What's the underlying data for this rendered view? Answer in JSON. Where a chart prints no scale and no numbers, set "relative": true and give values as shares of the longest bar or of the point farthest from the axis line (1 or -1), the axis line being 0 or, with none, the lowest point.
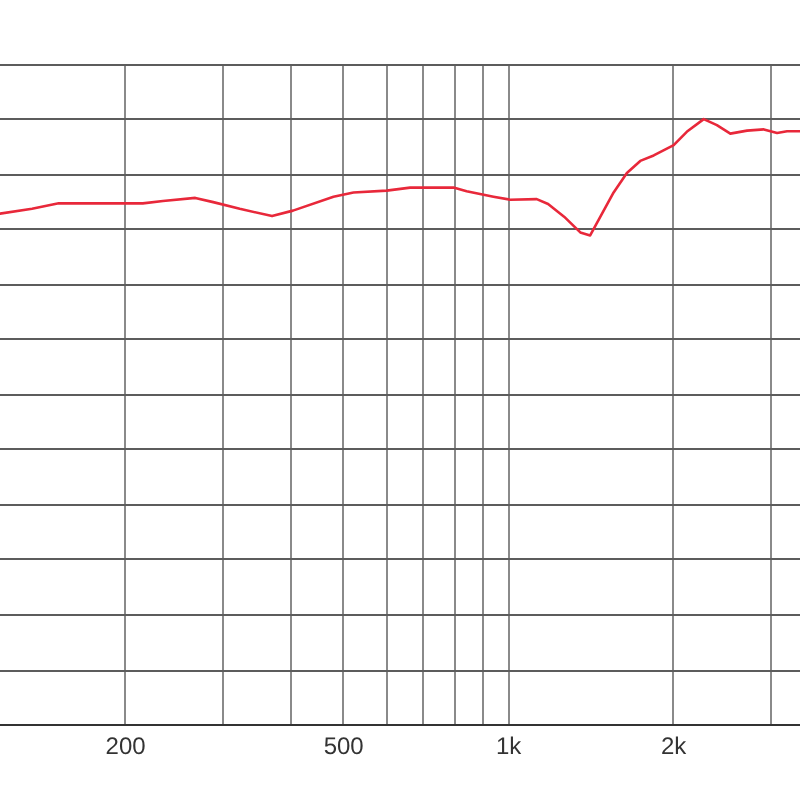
{
  "chart_data": {
    "type": "line",
    "relative": true,
    "log": "x",
    "x": [
      118,
      135,
      151,
      215,
      234,
      268,
      289,
      323,
      370,
      404,
      479,
      521,
      599,
      661,
      793,
      838,
      938,
      1006,
      1125,
      1180,
      1262,
      1351,
      1408,
      1554,
      1643,
      1738,
      1839,
      2000,
      2113,
      2269,
      2398,
      2537,
      2722,
      2921,
      3088,
      3220,
      3400
    ],
    "values": [
      0.844,
      0.852,
      0.861,
      0.861,
      0.865,
      0.87,
      0.863,
      0.852,
      0.84,
      0.849,
      0.872,
      0.879,
      0.882,
      0.887,
      0.887,
      0.881,
      0.872,
      0.867,
      0.868,
      0.86,
      0.839,
      0.813,
      0.808,
      0.879,
      0.911,
      0.931,
      0.94,
      0.957,
      0.979,
      1,
      0.99,
      0.976,
      0.981,
      0.983,
      0.977,
      0.98,
      0.98
    ],
    "color": "#e8283a",
    "xlim": [
      118,
      3400
    ],
    "xticks": [
      200,
      {
        "value": 300,
        "label": null
      },
      {
        "value": 400,
        "label": null
      },
      500,
      {
        "value": 600,
        "label": null
      },
      {
        "value": 700,
        "label": null
      },
      {
        "value": 800,
        "label": null
      },
      {
        "value": 900,
        "label": null
      },
      {
        "value": 1000,
        "label": "1k"
      },
      {
        "value": 2000,
        "label": "2k"
      },
      {
        "value": 3000,
        "label": null
      }
    ],
    "grid": true,
    "marker": "none"
  }
}
